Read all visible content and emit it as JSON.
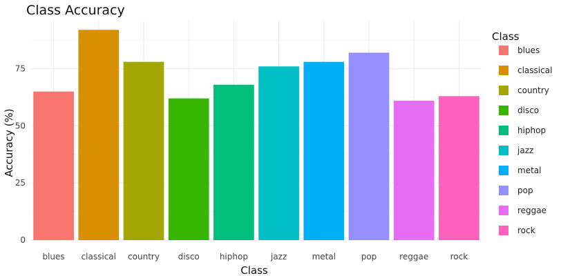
{
  "chart_data": {
    "type": "bar",
    "title": "Class Accuracy",
    "xlabel": "Class",
    "ylabel": "Accuracy (%)",
    "categories": [
      "blues",
      "classical",
      "country",
      "disco",
      "hiphop",
      "jazz",
      "metal",
      "pop",
      "reggae",
      "rock"
    ],
    "values": [
      65,
      92,
      78,
      62,
      68,
      76,
      78,
      82,
      61,
      63
    ],
    "colors": [
      "#F8766D",
      "#D89000",
      "#A3A500",
      "#39B600",
      "#00BF7D",
      "#00BFC4",
      "#00B0F6",
      "#9590FF",
      "#E76BF3",
      "#FF62BC"
    ],
    "ylim": [
      0,
      96
    ],
    "yticks": [
      0,
      25,
      50,
      75
    ],
    "grid": true,
    "legend": {
      "title": "Class",
      "position": "right",
      "entries": [
        "blues",
        "classical",
        "country",
        "disco",
        "hiphop",
        "jazz",
        "metal",
        "pop",
        "reggae",
        "rock"
      ]
    }
  }
}
